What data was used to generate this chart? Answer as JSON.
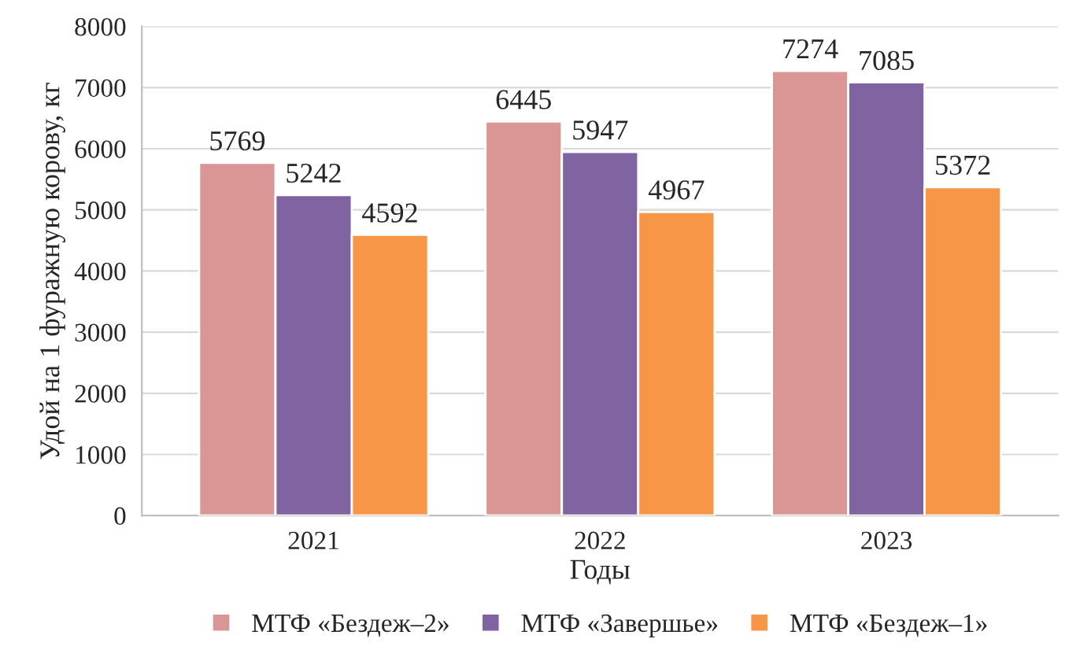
{
  "chart_data": {
    "type": "bar",
    "xlabel": "Годы",
    "ylabel": "Удой на 1 фуражную корову, кг",
    "categories": [
      "2021",
      "2022",
      "2023"
    ],
    "series": [
      {
        "name": "МТФ «Бездеж–2»",
        "color": "#d99694",
        "values": [
          5769,
          6445,
          7274
        ]
      },
      {
        "name": "МТФ «Завершье»",
        "color": "#8064a2",
        "values": [
          5242,
          5947,
          7085
        ]
      },
      {
        "name": "МТФ «Бездеж–1»",
        "color": "#f79646",
        "values": [
          4592,
          4967,
          5372
        ]
      }
    ],
    "ylim": [
      0,
      8000
    ],
    "yticks": [
      0,
      1000,
      2000,
      3000,
      4000,
      5000,
      6000,
      7000,
      8000
    ],
    "grid": "y",
    "legend": "bottom",
    "data_labels": true
  }
}
